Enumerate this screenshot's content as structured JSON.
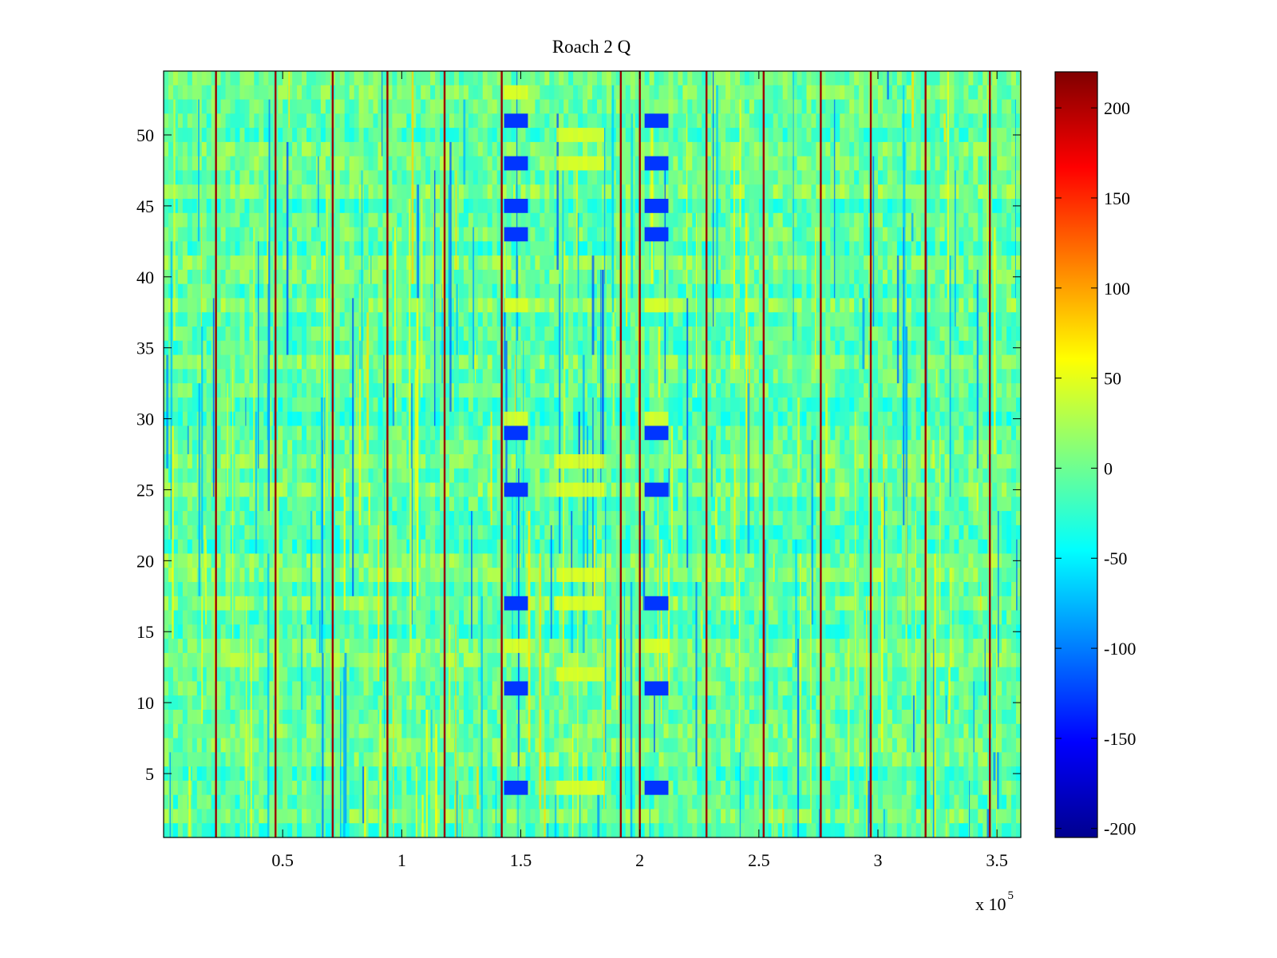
{
  "chart_data": {
    "type": "heatmap",
    "title": "Roach 2 Q",
    "xlabel": "",
    "ylabel": "",
    "x_exponent_label": {
      "base": "x 10",
      "exponent": "5"
    },
    "xlim": [
      0,
      360000
    ],
    "ylim": [
      0.5,
      54.5
    ],
    "x_ticks": [
      50000,
      100000,
      150000,
      200000,
      250000,
      300000,
      350000
    ],
    "x_tick_labels": [
      "0.5",
      "1",
      "1.5",
      "2",
      "2.5",
      "3",
      "3.5"
    ],
    "y_ticks": [
      5,
      10,
      15,
      20,
      25,
      30,
      35,
      40,
      45,
      50
    ],
    "y_tick_labels": [
      "5",
      "10",
      "15",
      "20",
      "25",
      "30",
      "35",
      "40",
      "45",
      "50"
    ],
    "rows": 54,
    "colormap": "jet",
    "clim": [
      -205,
      220
    ],
    "colorbar": {
      "ticks": [
        200,
        150,
        100,
        50,
        0,
        -50,
        -100,
        -150,
        -200
      ],
      "tick_labels": [
        "200",
        "150",
        "100",
        "50",
        "0",
        "-50",
        "-100",
        "-150",
        "-200"
      ],
      "placement": "right"
    },
    "baseline_value": -5,
    "vertical_lines": [
      22000,
      47000,
      71000,
      94000,
      118000,
      142000,
      192000,
      200000,
      228000,
      252000,
      276000,
      297000,
      320000,
      347000
    ],
    "blue_bands": [
      {
        "x_range": [
          143000,
          153000
        ],
        "rows": [
          51,
          48,
          45,
          43,
          29,
          25,
          17,
          11,
          4
        ],
        "value": -130
      },
      {
        "x_range": [
          202000,
          212000
        ],
        "rows": [
          51,
          48,
          45,
          43,
          29,
          25,
          17,
          11,
          4
        ],
        "value": -130
      }
    ],
    "yellow_bands": [
      {
        "x_range": [
          165000,
          185000
        ],
        "rows": [
          50,
          48,
          27,
          25,
          19,
          17,
          12,
          4
        ],
        "value": 50
      },
      {
        "x_range": [
          143000,
          153000
        ],
        "rows": [
          53,
          38,
          30,
          14
        ],
        "value": 50
      },
      {
        "x_range": [
          202000,
          212000
        ],
        "rows": [
          38,
          30,
          14
        ],
        "value": 50
      }
    ]
  }
}
